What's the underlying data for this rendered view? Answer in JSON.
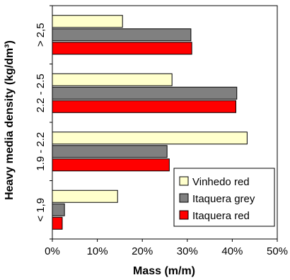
{
  "chart_data": {
    "type": "bar",
    "orientation": "horizontal",
    "xlabel": "Mass (m/m)",
    "ylabel": "Heavy media density (kg/dm³)",
    "xlim": [
      0,
      50
    ],
    "xticks": [
      "0%",
      "10%",
      "20%",
      "30%",
      "40%",
      "50%"
    ],
    "categories": [
      "< 1,9",
      "1.9 - 2.2",
      "2.2 - 2.5",
      "> 2,5"
    ],
    "series": [
      {
        "name": "Itaquera red",
        "color": "#ff0000",
        "values": [
          2.2,
          26.0,
          40.8,
          31.0
        ]
      },
      {
        "name": "Itaquera grey",
        "color": "#808080",
        "values": [
          2.7,
          25.5,
          41.0,
          30.8
        ]
      },
      {
        "name": "Vinhedo red",
        "color": "#ffffcc",
        "values": [
          14.5,
          43.3,
          26.6,
          15.6
        ]
      }
    ],
    "legend_order": [
      "Vinhedo red",
      "Itaquera grey",
      "Itaquera red"
    ],
    "legend_position": "bottom-right",
    "grid": false
  }
}
